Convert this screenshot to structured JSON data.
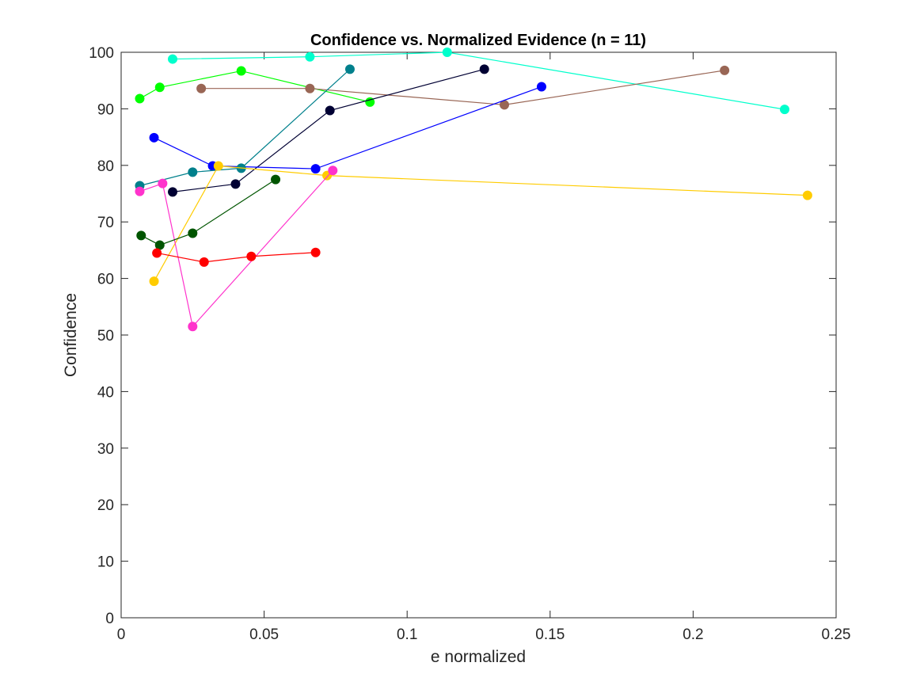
{
  "chart_data": {
    "type": "line",
    "title": "Confidence vs. Normalized Evidence (n = 11)",
    "xlabel": "e normalized",
    "ylabel": "Confidence",
    "xlim": [
      0,
      0.25
    ],
    "ylim": [
      0,
      100
    ],
    "xticks": [
      0,
      0.05,
      0.1,
      0.15,
      0.2,
      0.25
    ],
    "xtick_labels": [
      "0",
      "0.05",
      "0.1",
      "0.15",
      "0.2",
      "0.25"
    ],
    "yticks": [
      0,
      10,
      20,
      30,
      40,
      50,
      60,
      70,
      80,
      90,
      100
    ],
    "ytick_labels": [
      "0",
      "10",
      "20",
      "30",
      "40",
      "50",
      "60",
      "70",
      "80",
      "90",
      "100"
    ],
    "grid": false,
    "markers": true,
    "series": [
      {
        "color": "#00ffcc",
        "x": [
          0.018,
          0.066,
          0.114,
          0.232
        ],
        "y": [
          98.8,
          99.2,
          100,
          89.9
        ]
      },
      {
        "color": "#00ff00",
        "x": [
          0.0065,
          0.0135,
          0.042,
          0.087
        ],
        "y": [
          91.8,
          93.8,
          96.7,
          91.2
        ]
      },
      {
        "color": "#996655",
        "x": [
          0.028,
          0.066,
          0.134,
          0.211
        ],
        "y": [
          93.6,
          93.6,
          90.7,
          96.8
        ]
      },
      {
        "color": "#000033",
        "x": [
          0.018,
          0.04,
          0.073,
          0.127
        ],
        "y": [
          75.3,
          76.7,
          89.7,
          97.0
        ]
      },
      {
        "color": "#0000ff",
        "x": [
          0.0115,
          0.032,
          0.068,
          0.147
        ],
        "y": [
          84.9,
          79.9,
          79.4,
          93.9
        ]
      },
      {
        "color": "#00808c",
        "x": [
          0.0065,
          0.025,
          0.042,
          0.08
        ],
        "y": [
          76.4,
          78.8,
          79.5,
          97.0
        ]
      },
      {
        "color": "#ffcc00",
        "x": [
          0.0115,
          0.034,
          0.072,
          0.24
        ],
        "y": [
          59.5,
          79.9,
          78.2,
          74.7
        ]
      },
      {
        "color": "#ff33cc",
        "x": [
          0.0065,
          0.0145,
          0.025,
          0.074
        ],
        "y": [
          75.4,
          76.8,
          51.5,
          79.1
        ]
      },
      {
        "color": "#005500",
        "x": [
          0.007,
          0.0135,
          0.025,
          0.054
        ],
        "y": [
          67.6,
          65.9,
          68.0,
          77.5
        ]
      },
      {
        "color": "#ff0000",
        "x": [
          0.0125,
          0.029,
          0.0455,
          0.068
        ],
        "y": [
          64.5,
          62.9,
          63.9,
          64.6
        ]
      }
    ]
  }
}
